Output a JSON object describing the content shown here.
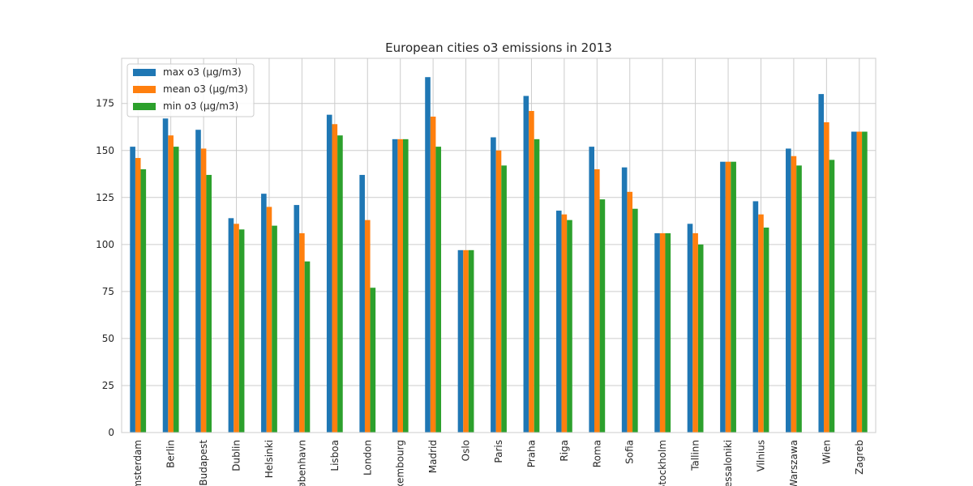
{
  "chart_data": {
    "type": "bar",
    "title": "European cities o3 emissions in 2013",
    "xlabel": "",
    "ylabel": "",
    "ylim": [
      0,
      199
    ],
    "yticks": [
      0,
      25,
      50,
      75,
      100,
      125,
      150,
      175
    ],
    "grid": true,
    "legend_position": "top-left",
    "categories": [
      "Amsterdam",
      "Berlin",
      "Budapest",
      "Dublin",
      "Helsinki",
      "København",
      "Lisboa",
      "London",
      "Luxembourg",
      "Madrid",
      "Oslo",
      "Paris",
      "Praha",
      "Riga",
      "Roma",
      "Sofia",
      "Stockholm",
      "Tallinn",
      "Thessaloniki",
      "Vilnius",
      "Warszawa",
      "Wien",
      "Zagreb"
    ],
    "series": [
      {
        "name": "max o3 (µg/m3)",
        "color": "#1f77b4",
        "values": [
          152,
          167,
          161,
          114,
          127,
          121,
          169,
          137,
          156,
          189,
          97,
          157,
          179,
          118,
          152,
          141,
          106,
          111,
          144,
          123,
          151,
          180,
          160
        ]
      },
      {
        "name": "mean o3 (µg/m3)",
        "color": "#ff7f0e",
        "values": [
          146,
          158,
          151,
          111,
          120,
          106,
          164,
          113,
          156,
          168,
          97,
          150,
          171,
          116,
          140,
          128,
          106,
          106,
          144,
          116,
          147,
          165,
          160
        ]
      },
      {
        "name": "min o3 (µg/m3)",
        "color": "#2ca02c",
        "values": [
          140,
          152,
          137,
          108,
          110,
          91,
          158,
          77,
          156,
          152,
          97,
          142,
          156,
          113,
          124,
          119,
          106,
          100,
          144,
          109,
          142,
          145,
          160
        ]
      }
    ]
  }
}
